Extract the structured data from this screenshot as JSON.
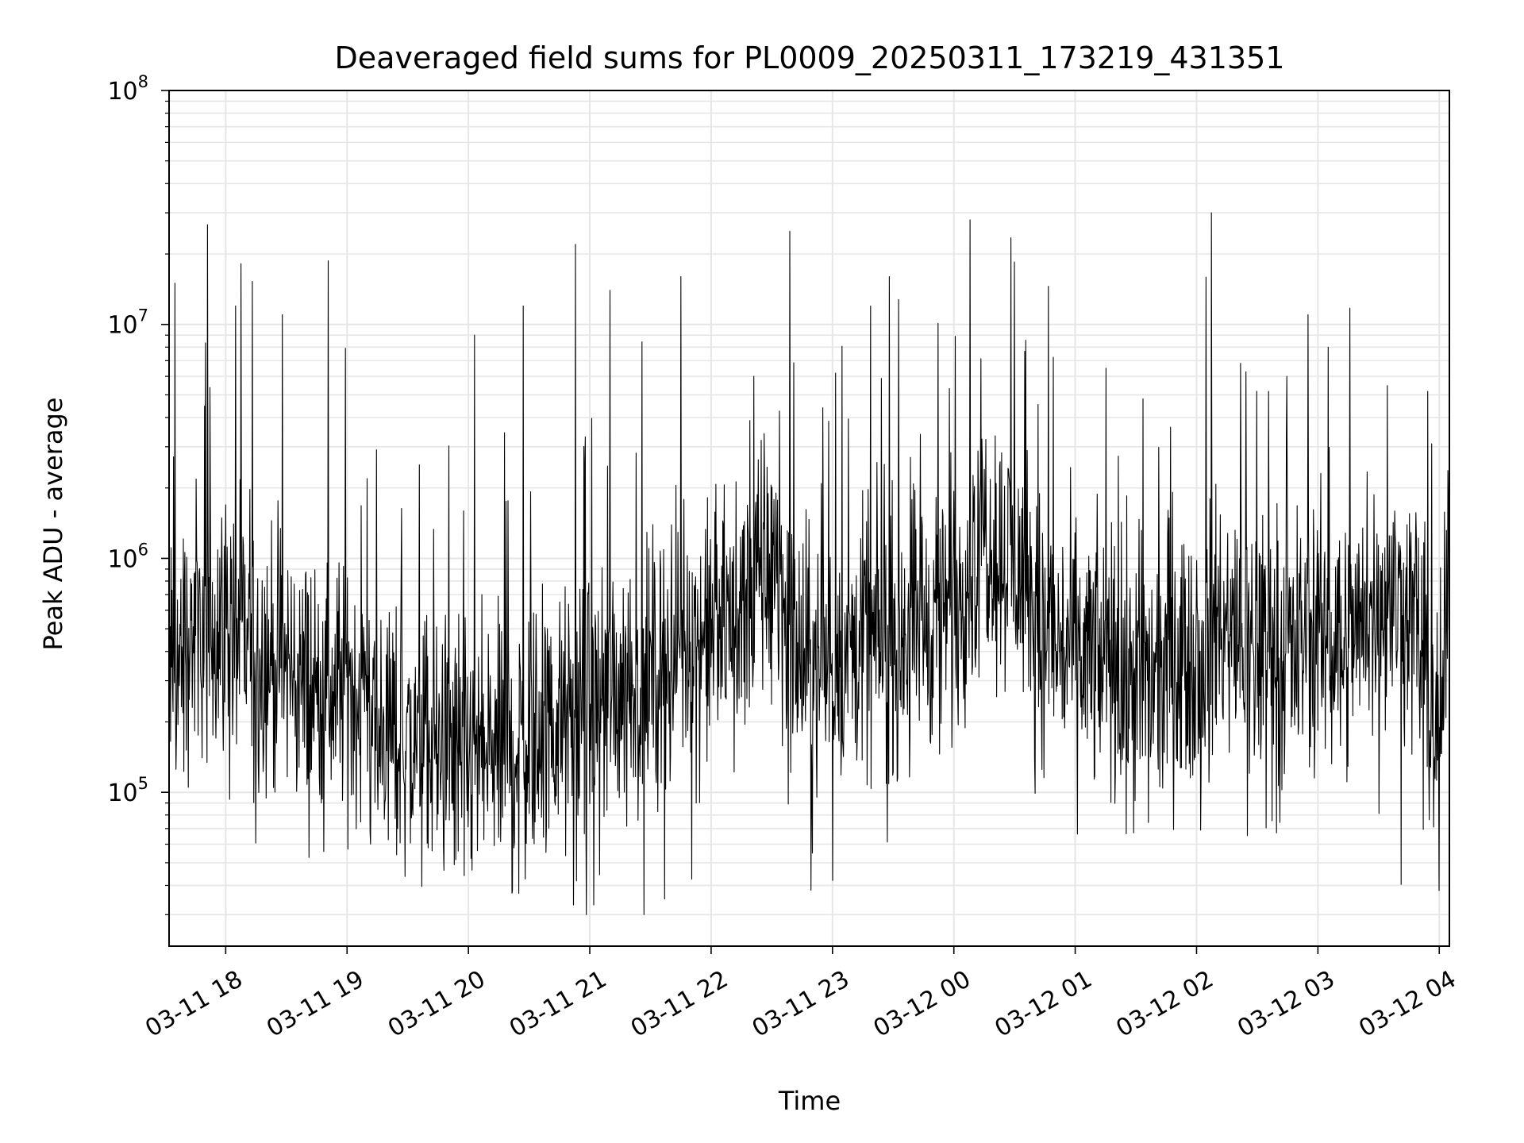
{
  "chart_data": {
    "type": "line",
    "title": "Deaveraged field sums for PL0009_20250311_173219_431351",
    "xlabel": "Time",
    "ylabel": "Peak ADU - average",
    "y_scale": "log",
    "ylim": [
      22000,
      100000000
    ],
    "xlim": [
      "2025-03-11 17:32",
      "2025-03-12 04:05"
    ],
    "grid": true,
    "line_color": "#000000",
    "grid_color": "#e6e6e6",
    "x_ticks": [
      {
        "value": "2025-03-11 18:00",
        "label": "03-11 18"
      },
      {
        "value": "2025-03-11 19:00",
        "label": "03-11 19"
      },
      {
        "value": "2025-03-11 20:00",
        "label": "03-11 20"
      },
      {
        "value": "2025-03-11 21:00",
        "label": "03-11 21"
      },
      {
        "value": "2025-03-11 22:00",
        "label": "03-11 22"
      },
      {
        "value": "2025-03-11 23:00",
        "label": "03-11 23"
      },
      {
        "value": "2025-03-12 00:00",
        "label": "03-12 00"
      },
      {
        "value": "2025-03-12 01:00",
        "label": "03-12 01"
      },
      {
        "value": "2025-03-12 02:00",
        "label": "03-12 02"
      },
      {
        "value": "2025-03-12 03:00",
        "label": "03-12 03"
      },
      {
        "value": "2025-03-12 04:00",
        "label": "03-12 04"
      }
    ],
    "y_ticks": [
      {
        "value": 100000,
        "base": "10",
        "exp": "5"
      },
      {
        "value": 1000000,
        "base": "10",
        "exp": "6"
      },
      {
        "value": 10000000,
        "base": "10",
        "exp": "7"
      },
      {
        "value": 100000000,
        "base": "10",
        "exp": "8"
      }
    ],
    "series": [
      {
        "x": [
          "2025-03-11 17:32",
          "2025-03-11 17:45",
          "2025-03-11 18:00",
          "2025-03-11 18:15",
          "2025-03-11 18:30",
          "2025-03-11 18:45",
          "2025-03-11 19:00",
          "2025-03-11 19:15",
          "2025-03-11 19:30",
          "2025-03-11 19:45",
          "2025-03-11 20:00",
          "2025-03-11 20:15",
          "2025-03-11 20:30",
          "2025-03-11 20:45",
          "2025-03-11 21:00",
          "2025-03-11 21:15",
          "2025-03-11 21:30",
          "2025-03-11 21:45",
          "2025-03-11 22:00",
          "2025-03-11 22:15",
          "2025-03-11 22:30",
          "2025-03-11 22:45",
          "2025-03-11 23:00",
          "2025-03-11 23:15",
          "2025-03-11 23:30",
          "2025-03-11 23:45",
          "2025-03-12 00:00",
          "2025-03-12 00:15",
          "2025-03-12 00:30",
          "2025-03-12 00:45",
          "2025-03-12 01:00",
          "2025-03-12 01:15",
          "2025-03-12 01:30",
          "2025-03-12 01:45",
          "2025-03-12 02:00",
          "2025-03-12 02:15",
          "2025-03-12 02:30",
          "2025-03-12 02:45",
          "2025-03-12 03:00",
          "2025-03-12 03:15",
          "2025-03-12 03:30",
          "2025-03-12 03:45",
          "2025-03-12 04:00",
          "2025-03-12 04:05"
        ],
        "values": [
          300000,
          500000,
          550000,
          400000,
          350000,
          250000,
          300000,
          200000,
          160000,
          150000,
          130000,
          150000,
          170000,
          190000,
          220000,
          300000,
          320000,
          400000,
          480000,
          600000,
          1000000,
          350000,
          380000,
          420000,
          480000,
          520000,
          650000,
          1400000,
          900000,
          450000,
          400000,
          350000,
          320000,
          280000,
          450000,
          480000,
          420000,
          400000,
          500000,
          450000,
          600000,
          700000,
          180000,
          650000
        ]
      }
    ],
    "spikes": [
      {
        "x": "2025-03-11 17:35",
        "value": 15000000
      },
      {
        "x": "2025-03-11 18:05",
        "value": 12000000
      },
      {
        "x": "2025-03-11 18:28",
        "value": 11000000
      },
      {
        "x": "2025-03-11 20:03",
        "value": 9000000
      },
      {
        "x": "2025-03-11 20:27",
        "value": 12000000
      },
      {
        "x": "2025-03-11 20:53",
        "value": 22000000
      },
      {
        "x": "2025-03-11 21:10",
        "value": 14000000
      },
      {
        "x": "2025-03-11 21:45",
        "value": 16000000
      },
      {
        "x": "2025-03-11 22:39",
        "value": 25000000
      },
      {
        "x": "2025-03-11 23:28",
        "value": 16000000
      },
      {
        "x": "2025-03-12 00:08",
        "value": 28000000
      },
      {
        "x": "2025-03-12 00:30",
        "value": 18500000
      },
      {
        "x": "2025-03-12 02:55",
        "value": 11000000
      },
      {
        "x": "2025-03-12 03:05",
        "value": 8000000
      }
    ],
    "dips": [
      {
        "x": "2025-03-11 20:52",
        "value": 33000
      },
      {
        "x": "2025-03-11 21:02",
        "value": 33000
      },
      {
        "x": "2025-03-11 21:37",
        "value": 35000
      },
      {
        "x": "2025-03-11 20:25",
        "value": 37000
      },
      {
        "x": "2025-03-12 04:00",
        "value": 38000
      },
      {
        "x": "2025-03-11 23:00",
        "value": 42000
      }
    ]
  }
}
